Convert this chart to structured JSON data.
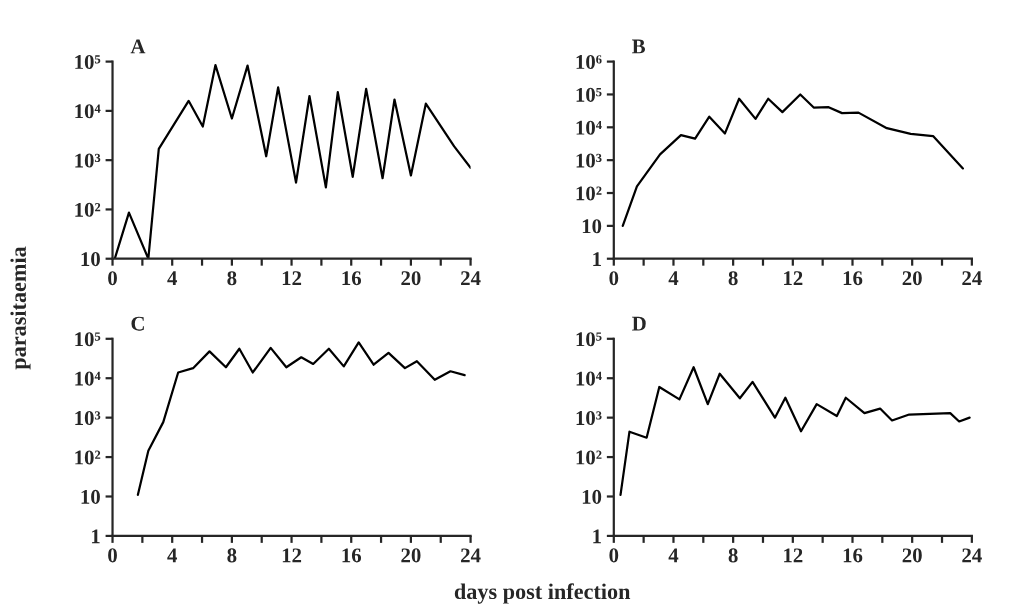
{
  "chart_data": [
    {
      "type": "line",
      "title": "A",
      "ylabel": "parasitaemia",
      "xlabel": "days post infection",
      "log": "y",
      "xlim": [
        0,
        24
      ],
      "ylim": [
        10,
        100000
      ],
      "xticks": [
        0,
        {
          "value": 2,
          "label": null
        },
        4,
        {
          "value": 6,
          "label": null
        },
        8,
        {
          "value": 10,
          "label": null
        },
        12,
        {
          "value": 14,
          "label": null
        },
        16,
        {
          "value": 18,
          "label": null
        },
        20,
        {
          "value": 22,
          "label": null
        },
        24
      ],
      "yticks": [
        10,
        {
          "value": 100,
          "label": "10²"
        },
        {
          "value": 1000,
          "label": "10³"
        },
        {
          "value": 10000,
          "label": "10⁴"
        },
        {
          "value": 100000,
          "label": "10⁵"
        }
      ],
      "series": [
        {
          "color": "#000000",
          "x": [
            0.15,
            1.1,
            2.4,
            3.1,
            5.1,
            6.05,
            6.9,
            8.0,
            9.05,
            10.3,
            11.1,
            12.3,
            13.2,
            14.3,
            15.1,
            16.1,
            17.0,
            18.1,
            18.9,
            20.0,
            21.0,
            22.9,
            24.0
          ],
          "values": [
            10,
            86,
            10,
            1700,
            16000,
            4800,
            85000,
            7000,
            83000,
            1200,
            30000,
            350,
            20000,
            280,
            24000,
            460,
            28000,
            430,
            17000,
            490,
            14000,
            1900,
            700
          ]
        }
      ]
    },
    {
      "type": "line",
      "title": "B",
      "log": "y",
      "xlim": [
        0,
        24
      ],
      "ylim": [
        1,
        1000000
      ],
      "xticks": [
        0,
        {
          "value": 2,
          "label": null
        },
        4,
        {
          "value": 6,
          "label": null
        },
        8,
        {
          "value": 10,
          "label": null
        },
        12,
        {
          "value": 14,
          "label": null
        },
        16,
        {
          "value": 18,
          "label": null
        },
        20,
        {
          "value": 22,
          "label": null
        },
        24
      ],
      "yticks": [
        1,
        10,
        {
          "value": 100,
          "label": "10²"
        },
        {
          "value": 1000,
          "label": "10³"
        },
        {
          "value": 10000,
          "label": "10⁴"
        },
        {
          "value": 100000,
          "label": "10⁵"
        },
        {
          "value": 1000000,
          "label": "10⁶"
        }
      ],
      "series": [
        {
          "color": "#000000",
          "x": [
            0.6,
            1.55,
            3.1,
            4.5,
            5.45,
            6.4,
            7.45,
            8.4,
            9.5,
            10.35,
            11.3,
            12.5,
            13.4,
            14.4,
            15.3,
            16.4,
            18.3,
            19.9,
            21.4,
            23.4
          ],
          "values": [
            10,
            160,
            1500,
            5800,
            4500,
            21000,
            6500,
            74000,
            18000,
            74000,
            29000,
            100000,
            40000,
            41000,
            27000,
            28000,
            9400,
            6300,
            5400,
            560
          ]
        }
      ]
    },
    {
      "type": "line",
      "title": "C",
      "log": "y",
      "xlim": [
        0,
        24
      ],
      "ylim": [
        1,
        100000
      ],
      "xticks": [
        0,
        {
          "value": 2,
          "label": null
        },
        4,
        {
          "value": 6,
          "label": null
        },
        8,
        {
          "value": 10,
          "label": null
        },
        12,
        {
          "value": 14,
          "label": null
        },
        16,
        {
          "value": 18,
          "label": null
        },
        20,
        {
          "value": 22,
          "label": null
        },
        24
      ],
      "yticks": [
        1,
        10,
        {
          "value": 100,
          "label": "10²"
        },
        {
          "value": 1000,
          "label": "10³"
        },
        {
          "value": 10000,
          "label": "10⁴"
        },
        {
          "value": 100000,
          "label": "10⁵"
        }
      ],
      "series": [
        {
          "color": "#000000",
          "x": [
            1.7,
            2.4,
            3.4,
            4.4,
            5.4,
            6.5,
            7.6,
            8.5,
            9.4,
            10.6,
            11.65,
            12.65,
            13.45,
            14.5,
            15.5,
            16.5,
            17.5,
            18.5,
            19.6,
            20.4,
            21.6,
            22.65,
            23.6
          ],
          "values": [
            11,
            145,
            770,
            14000,
            18000,
            48000,
            19000,
            56000,
            14000,
            59000,
            19000,
            34000,
            23000,
            56000,
            20000,
            81000,
            22000,
            44000,
            18000,
            27000,
            9100,
            15000,
            12000
          ]
        }
      ]
    },
    {
      "type": "line",
      "title": "D",
      "log": "y",
      "xlim": [
        0,
        24
      ],
      "ylim": [
        1,
        100000
      ],
      "xticks": [
        0,
        {
          "value": 2,
          "label": null
        },
        4,
        {
          "value": 6,
          "label": null
        },
        8,
        {
          "value": 10,
          "label": null
        },
        12,
        {
          "value": 14,
          "label": null
        },
        16,
        {
          "value": 18,
          "label": null
        },
        20,
        {
          "value": 22,
          "label": null
        },
        24
      ],
      "yticks": [
        1,
        10,
        {
          "value": 100,
          "label": "10²"
        },
        {
          "value": 1000,
          "label": "10³"
        },
        {
          "value": 10000,
          "label": "10⁴"
        },
        {
          "value": 100000,
          "label": "10⁵"
        }
      ],
      "series": [
        {
          "color": "#000000",
          "x": [
            0.45,
            1.05,
            2.2,
            3.05,
            4.4,
            5.35,
            6.3,
            7.1,
            8.45,
            9.3,
            10.8,
            11.5,
            12.55,
            13.6,
            14.95,
            15.55,
            16.8,
            17.85,
            18.65,
            19.8,
            22.55,
            23.15,
            23.85
          ],
          "values": [
            11,
            440,
            310,
            6000,
            2900,
            19000,
            2200,
            13000,
            3100,
            8100,
            1000,
            3200,
            450,
            2200,
            1100,
            3200,
            1300,
            1700,
            850,
            1200,
            1300,
            800,
            1000
          ]
        }
      ]
    }
  ]
}
